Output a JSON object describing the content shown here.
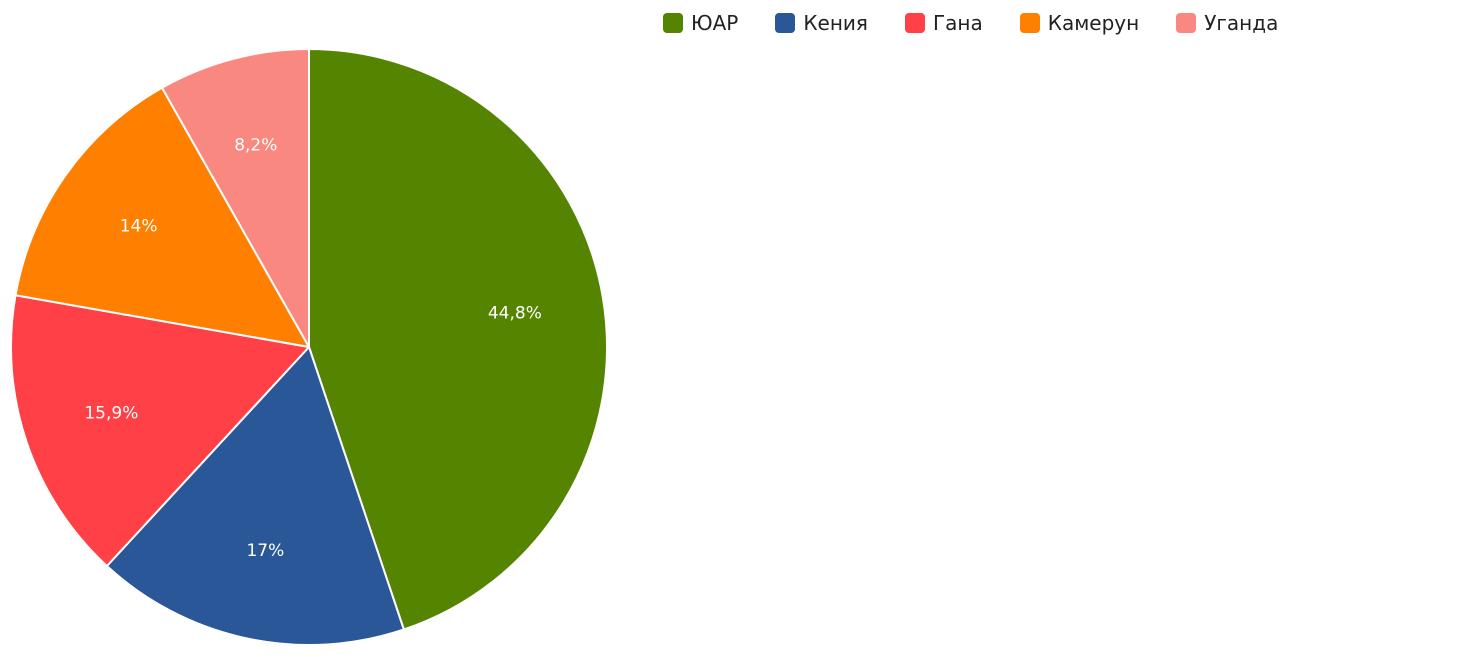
{
  "chart_data": {
    "type": "pie",
    "title": "",
    "legend_position": "top",
    "start_angle_deg": 0,
    "direction": "clockwise",
    "slices": [
      {
        "label": "ЮАР",
        "value": 44.8,
        "value_label": "44,8%",
        "color": "#558401"
      },
      {
        "label": "Кения",
        "value": 17.0,
        "value_label": "17%",
        "color": "#295797"
      },
      {
        "label": "Гана",
        "value": 15.9,
        "value_label": "15,9%",
        "color": "#ff4046"
      },
      {
        "label": "Камерун",
        "value": 14.0,
        "value_label": "14%",
        "color": "#ff8000"
      },
      {
        "label": "Уганда",
        "value": 8.2,
        "value_label": "8,2%",
        "color": "#f98880"
      }
    ]
  }
}
